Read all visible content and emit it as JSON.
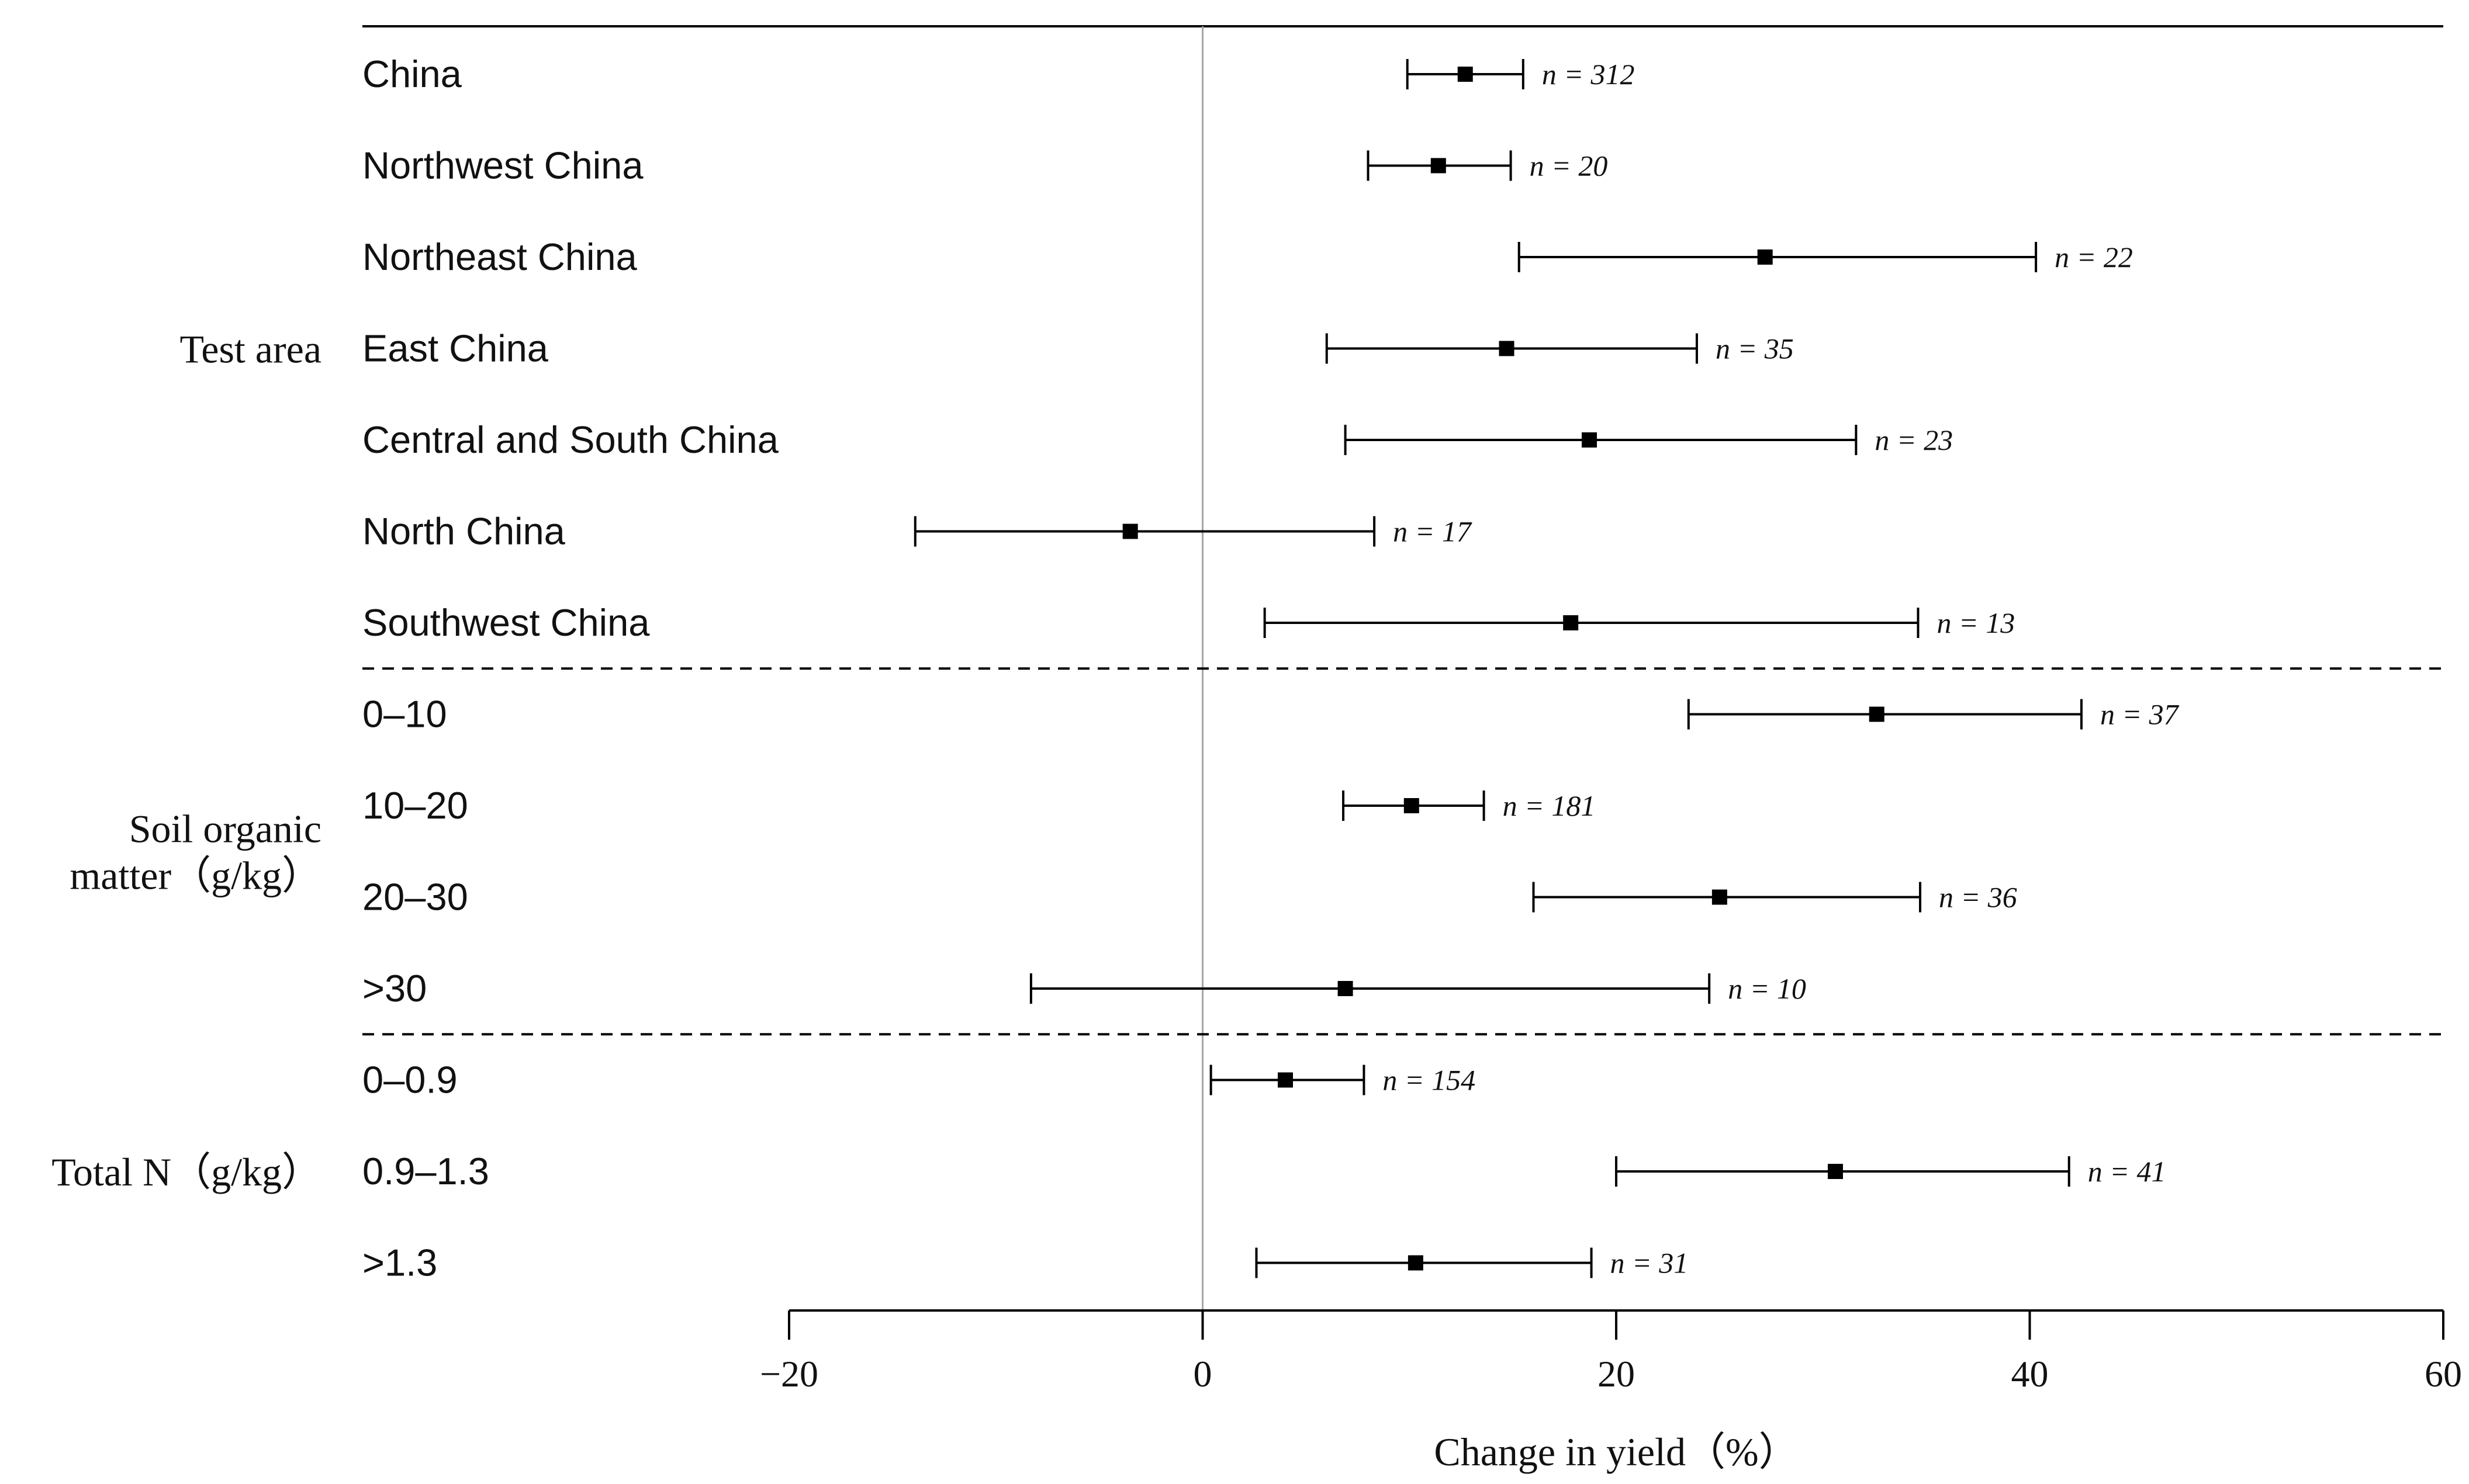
{
  "chart_data": {
    "type": "forest",
    "xlabel": "Change in yield（%）",
    "xlim": [
      -20,
      60
    ],
    "xticks": [
      {
        "value": -20,
        "label": "−20"
      },
      {
        "value": 0,
        "label": "0"
      },
      {
        "value": 20,
        "label": "20"
      },
      {
        "value": 40,
        "label": "40"
      },
      {
        "value": 60,
        "label": "60"
      }
    ],
    "reference_line": 0,
    "groups": [
      {
        "label": "Test area",
        "rows": [
          {
            "label": "China",
            "mean": 12.7,
            "lower": 9.9,
            "upper": 15.5,
            "n_label": "n = 312"
          },
          {
            "label": "Northwest China",
            "mean": 11.4,
            "lower": 8.0,
            "upper": 14.9,
            "n_label": "n = 20"
          },
          {
            "label": "Northeast China",
            "mean": 27.2,
            "lower": 15.3,
            "upper": 40.3,
            "n_label": "n = 22"
          },
          {
            "label": "East China",
            "mean": 14.7,
            "lower": 6.0,
            "upper": 23.9,
            "n_label": "n = 35"
          },
          {
            "label": "Central and South China",
            "mean": 18.7,
            "lower": 6.9,
            "upper": 31.6,
            "n_label": "n = 23"
          },
          {
            "label": "North China",
            "mean": -3.5,
            "lower": -13.9,
            "upper": 8.3,
            "n_label": "n = 17"
          },
          {
            "label": "Southwest China",
            "mean": 17.8,
            "lower": 3.0,
            "upper": 34.6,
            "n_label": "n = 13"
          }
        ]
      },
      {
        "label": "Soil organic matter（g/kg）",
        "label_lines": [
          "Soil organic",
          "matter（g/kg）"
        ],
        "rows": [
          {
            "label": "0–10",
            "mean": 32.6,
            "lower": 23.5,
            "upper": 42.5,
            "n_label": "n = 37"
          },
          {
            "label": "10–20",
            "mean": 10.1,
            "lower": 6.8,
            "upper": 13.6,
            "n_label": "n = 181"
          },
          {
            "label": "20–30",
            "mean": 25.0,
            "lower": 16.0,
            "upper": 34.7,
            "n_label": "n = 36"
          },
          {
            "label": ">30",
            "mean": 6.9,
            "lower": -8.3,
            "upper": 24.5,
            "n_label": "n = 10"
          }
        ]
      },
      {
        "label": "Total N（g/kg）",
        "rows": [
          {
            "label": "0–0.9",
            "mean": 4.0,
            "lower": 0.4,
            "upper": 7.8,
            "n_label": "n = 154"
          },
          {
            "label": "0.9–1.3",
            "mean": 30.6,
            "lower": 20.0,
            "upper": 41.9,
            "n_label": "n = 41"
          },
          {
            "label": ">1.3",
            "mean": 10.3,
            "lower": 2.6,
            "upper": 18.8,
            "n_label": "n = 31"
          }
        ]
      }
    ],
    "legend": null,
    "grid": false
  },
  "colors": {
    "line": "#000000",
    "reference": "#a6a6a6",
    "marker": "#000000",
    "text": "#111111"
  }
}
